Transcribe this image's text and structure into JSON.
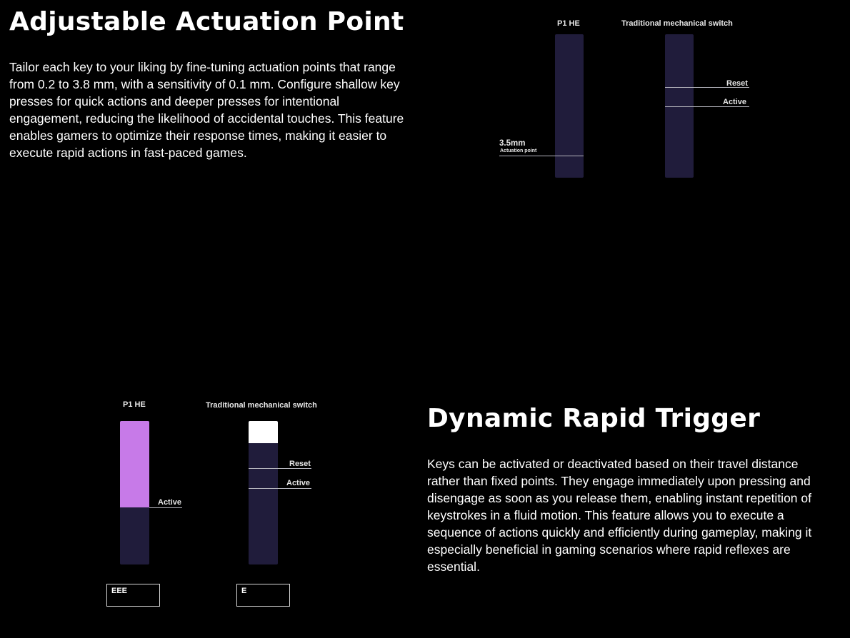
{
  "actuation": {
    "title": "Adjustable Actuation Point",
    "body": "Tailor each key to your liking by fine-tuning actuation points that range from 0.2 to 3.8 mm, with a sensitivity of 0.1 mm. Configure shallow key presses for quick actions and deeper presses for intentional engagement, reducing the likelihood of accidental touches. This feature enables gamers to optimize their response times, making it easier to execute rapid actions in fast-paced games.",
    "diagram": {
      "p1_label": "P1 HE",
      "trad_label": "Traditional mechanical switch",
      "actuation_value": "3.5mm",
      "actuation_caption": "Actuation point",
      "reset_label": "Reset",
      "active_label": "Active"
    }
  },
  "rapid": {
    "title": "Dynamic Rapid Trigger",
    "body": "Keys can be activated or deactivated based on their travel distance rather than fixed points. They engage immediately upon pressing and disengage as soon as you release them, enabling instant repetition of keystrokes in a fluid motion. This feature allows you to execute a sequence of actions quickly and efficiently during gameplay, making it especially beneficial in gaming scenarios where rapid reflexes are essential.",
    "diagram": {
      "p1_label": "P1 HE",
      "trad_label": "Traditional mechanical switch",
      "p1_active_label": "Active",
      "reset_label": "Reset",
      "active_label": "Active",
      "p1_key_output": "EEE",
      "trad_key_output": "E",
      "p1_fill_color": "#c77ae8",
      "trad_fill_color": "#ffffff"
    }
  },
  "colors": {
    "background": "#000000",
    "bar": "#201c3b",
    "accent": "#c77ae8"
  }
}
